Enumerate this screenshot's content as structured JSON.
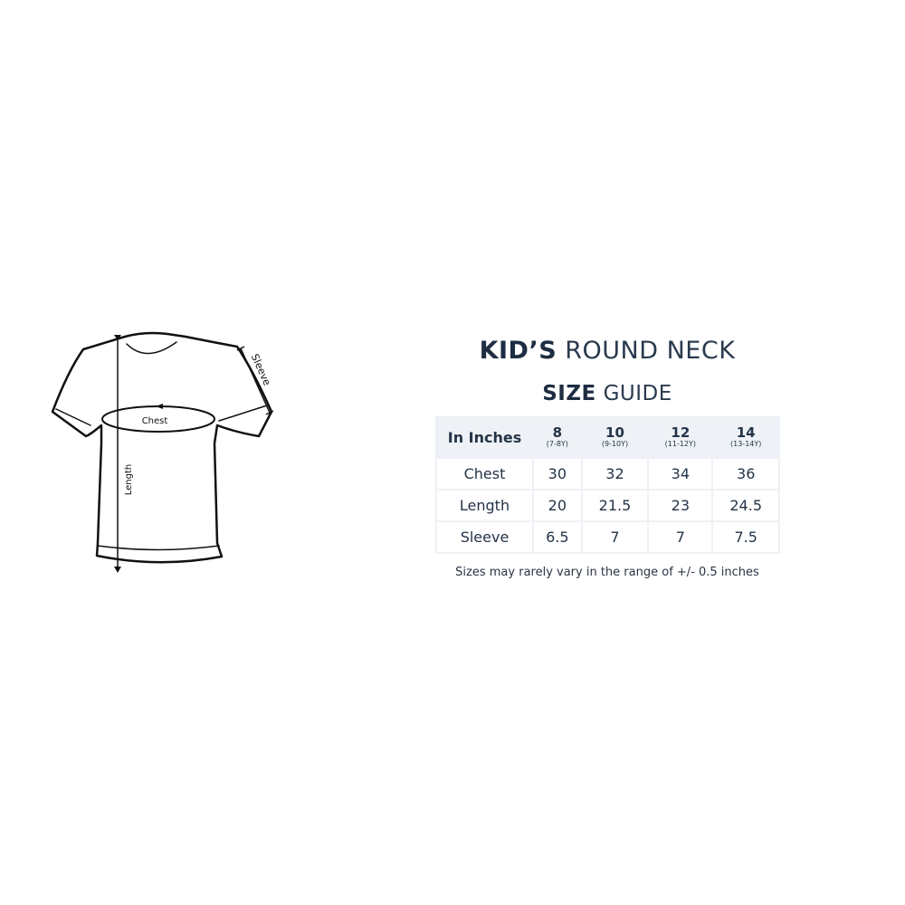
{
  "title": {
    "bold": "KID’S",
    "light": "ROUND NECK"
  },
  "subtitle": {
    "bold": "SIZE",
    "light": "GUIDE"
  },
  "diagram": {
    "chest_label": "Chest",
    "length_label": "Length",
    "sleeve_label": "Sleeve"
  },
  "table": {
    "corner": "In Inches",
    "columns": [
      {
        "size": "8",
        "age": "(7-8Y)"
      },
      {
        "size": "10",
        "age": "(9-10Y)"
      },
      {
        "size": "12",
        "age": "(11-12Y)"
      },
      {
        "size": "14",
        "age": "(13-14Y)"
      }
    ],
    "rows": [
      {
        "label": "Chest",
        "values": [
          "30",
          "32",
          "34",
          "36"
        ]
      },
      {
        "label": "Length",
        "values": [
          "20",
          "21.5",
          "23",
          "24.5"
        ]
      },
      {
        "label": "Sleeve",
        "values": [
          "6.5",
          "7",
          "7",
          "7.5"
        ]
      }
    ]
  },
  "note": "Sizes may rarely vary in the range of +/- 0.5 inches"
}
